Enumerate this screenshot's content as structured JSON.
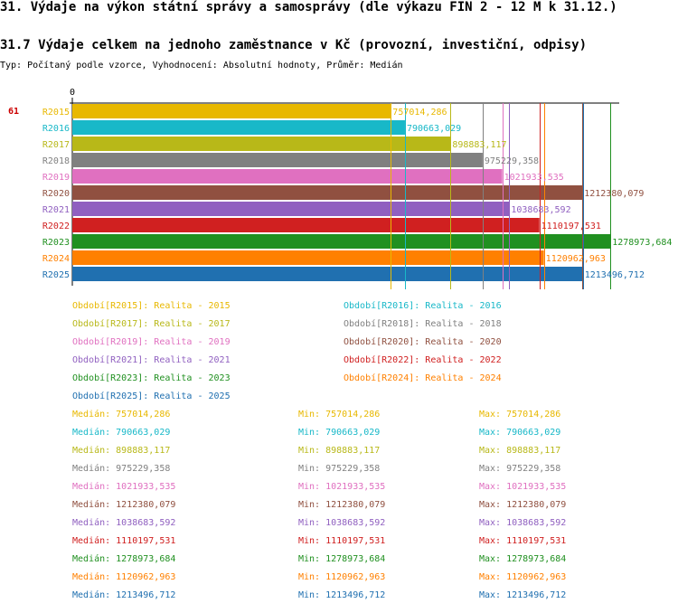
{
  "header": {
    "title": "31. Výdaje na výkon státní správy a samosprávy (dle výkazu FIN 2 - 12 M k 31.12.)",
    "subtitle": "31.7 Výdaje celkem na jednoho zaměstnance v Kč (provozní, investiční, odpisy)",
    "info": "Typ: Počítaný podle vzorce, Vyhodnocení: Absolutní hodnoty, Průměr: Medián"
  },
  "chart_data": {
    "type": "bar",
    "orientation": "horizontal",
    "row_label": "61",
    "axis_zero_label": "0",
    "xlim": [
      0,
      1300000
    ],
    "categories": [
      "R2015",
      "R2016",
      "R2017",
      "R2018",
      "R2019",
      "R2020",
      "R2021",
      "R2022",
      "R2023",
      "R2024",
      "R2025"
    ],
    "values": [
      757014.286,
      790663.029,
      898883.117,
      975229.358,
      1021933.535,
      1212380.079,
      1038683.592,
      1110197.531,
      1278973.684,
      1120962.963,
      1213496.712
    ],
    "value_labels": [
      "757014,286",
      "790663,029",
      "898883,117",
      "975229,358",
      "1021933,535",
      "1212380,079",
      "1038683,592",
      "1110197,531",
      "1278973,684",
      "1120962,963",
      "1213496,712"
    ],
    "colors": [
      "#e8b800",
      "#18b8c8",
      "#b8b818",
      "#808080",
      "#e070c0",
      "#905040",
      "#9060c0",
      "#d02020",
      "#209020",
      "#ff8000",
      "#2070b0"
    ]
  },
  "legend": [
    "Období[R2015]: Realita - 2015",
    "Období[R2016]: Realita - 2016",
    "Období[R2017]: Realita - 2017",
    "Období[R2018]: Realita - 2018",
    "Období[R2019]: Realita - 2019",
    "Období[R2020]: Realita - 2020",
    "Období[R2021]: Realita - 2021",
    "Období[R2022]: Realita - 2022",
    "Období[R2023]: Realita - 2023",
    "Období[R2024]: Realita - 2024",
    "Období[R2025]: Realita - 2025"
  ],
  "stats": [
    {
      "median": "Medián: 757014,286",
      "min": "Min: 757014,286",
      "max": "Max: 757014,286"
    },
    {
      "median": "Medián: 790663,029",
      "min": "Min: 790663,029",
      "max": "Max: 790663,029"
    },
    {
      "median": "Medián: 898883,117",
      "min": "Min: 898883,117",
      "max": "Max: 898883,117"
    },
    {
      "median": "Medián: 975229,358",
      "min": "Min: 975229,358",
      "max": "Max: 975229,358"
    },
    {
      "median": "Medián: 1021933,535",
      "min": "Min: 1021933,535",
      "max": "Max: 1021933,535"
    },
    {
      "median": "Medián: 1212380,079",
      "min": "Min: 1212380,079",
      "max": "Max: 1212380,079"
    },
    {
      "median": "Medián: 1038683,592",
      "min": "Min: 1038683,592",
      "max": "Max: 1038683,592"
    },
    {
      "median": "Medián: 1110197,531",
      "min": "Min: 1110197,531",
      "max": "Max: 1110197,531"
    },
    {
      "median": "Medián: 1278973,684",
      "min": "Min: 1278973,684",
      "max": "Max: 1278973,684"
    },
    {
      "median": "Medián: 1120962,963",
      "min": "Min: 1120962,963",
      "max": "Max: 1120962,963"
    },
    {
      "median": "Medián: 1213496,712",
      "min": "Min: 1213496,712",
      "max": "Max: 1213496,712"
    }
  ]
}
